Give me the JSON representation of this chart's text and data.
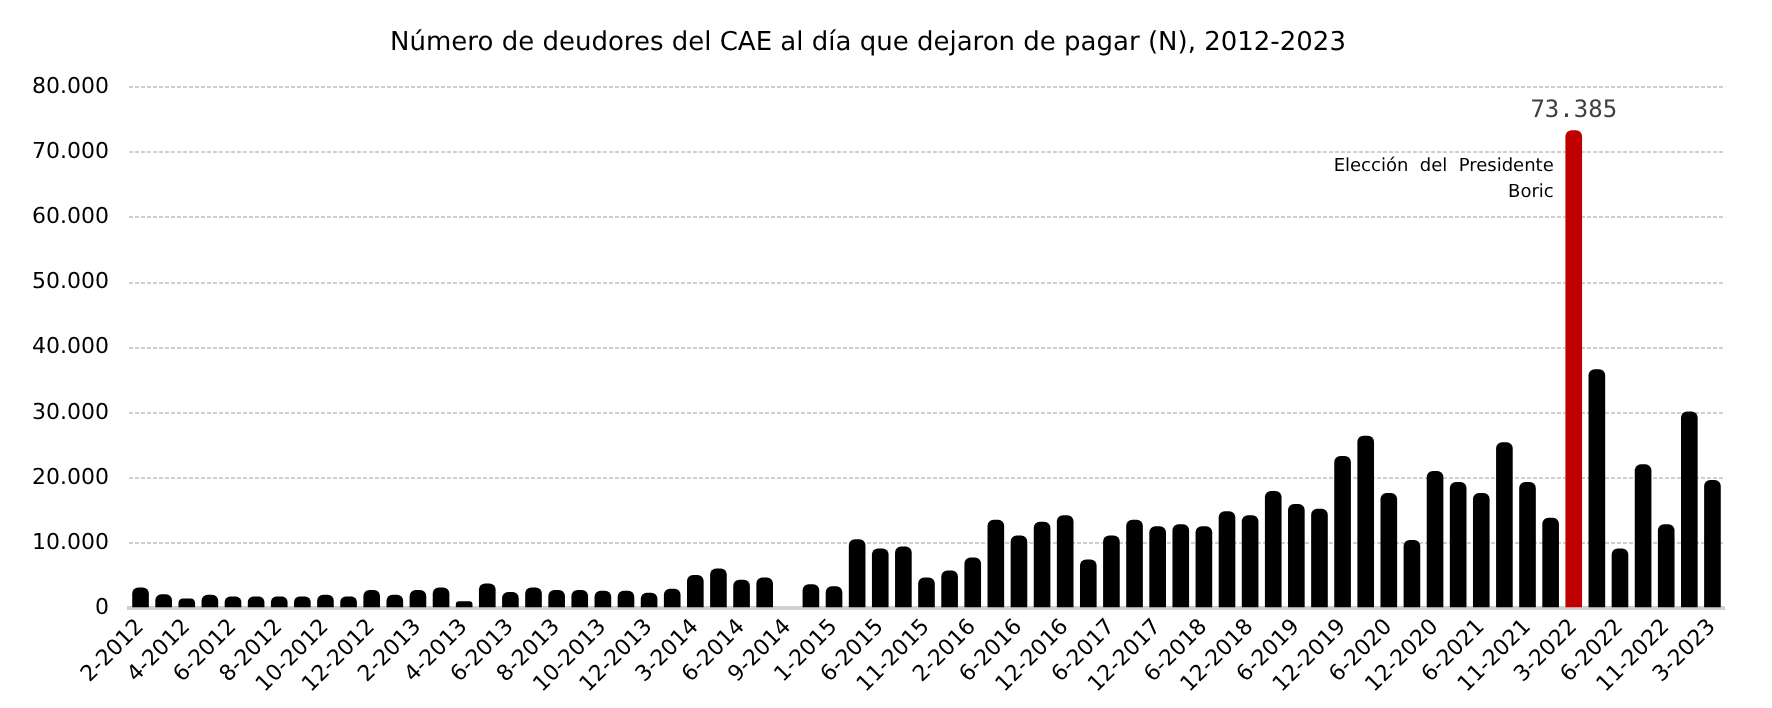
{
  "chart_data": {
    "type": "bar",
    "title": "Número de deudores del CAE al día que dejaron de pagar (N), 2012-2023",
    "categories": [
      "2-2012",
      null,
      "4-2012",
      null,
      "6-2012",
      null,
      "8-2012",
      null,
      "10-2012",
      null,
      "12-2012",
      null,
      "2-2013",
      null,
      "4-2013",
      null,
      "6-2013",
      null,
      "8-2013",
      null,
      "10-2013",
      null,
      "12-2013",
      null,
      "3-2014",
      null,
      "6-2014",
      null,
      "9-2014",
      null,
      "1-2015",
      null,
      "6-2015",
      null,
      "11-2015",
      null,
      "2-2016",
      null,
      "6-2016",
      null,
      "12-2016",
      null,
      "6-2017",
      null,
      "12-2017",
      null,
      "6-2018",
      null,
      "12-2018",
      null,
      "6-2019",
      null,
      "12-2019",
      null,
      "6-2020",
      null,
      "12-2020",
      null,
      "6-2021",
      null,
      "11-2021",
      null,
      "3-2022",
      null,
      "6-2022",
      null,
      "11-2022",
      null,
      "3-2023"
    ],
    "values": [
      3200,
      2150,
      1500,
      2100,
      1800,
      1800,
      1800,
      1800,
      2100,
      1800,
      2800,
      2100,
      2800,
      3200,
      1100,
      3800,
      2500,
      3200,
      2800,
      2800,
      2700,
      2700,
      2400,
      3000,
      5100,
      6100,
      4400,
      4750,
      null,
      3700,
      3400,
      10600,
      9200,
      9500,
      4750,
      5800,
      7800,
      13600,
      11200,
      13300,
      14300,
      7500,
      11200,
      13600,
      12600,
      12900,
      12600,
      14900,
      14300,
      18000,
      16000,
      15300,
      23400,
      26500,
      17700,
      10500,
      21100,
      19400,
      17700,
      25500,
      19400,
      13900,
      73385,
      36700,
      9200,
      22100,
      12900,
      30200,
      19700
    ],
    "colors": [
      "#000000",
      "#000000",
      "#000000",
      "#000000",
      "#000000",
      "#000000",
      "#000000",
      "#000000",
      "#000000",
      "#000000",
      "#000000",
      "#000000",
      "#000000",
      "#000000",
      "#000000",
      "#000000",
      "#000000",
      "#000000",
      "#000000",
      "#000000",
      "#000000",
      "#000000",
      "#000000",
      "#000000",
      "#000000",
      "#000000",
      "#000000",
      "#000000",
      "#000000",
      "#000000",
      "#000000",
      "#000000",
      "#000000",
      "#000000",
      "#000000",
      "#000000",
      "#000000",
      "#000000",
      "#000000",
      "#000000",
      "#000000",
      "#000000",
      "#000000",
      "#000000",
      "#000000",
      "#000000",
      "#000000",
      "#000000",
      "#000000",
      "#000000",
      "#000000",
      "#000000",
      "#000000",
      "#000000",
      "#000000",
      "#000000",
      "#000000",
      "#000000",
      "#000000",
      "#000000",
      "#000000",
      "#000000",
      "#c00000",
      "#000000",
      "#000000",
      "#000000",
      "#000000",
      "#000000",
      "#000000"
    ],
    "value_labels": [
      null,
      null,
      null,
      null,
      null,
      null,
      null,
      null,
      null,
      null,
      null,
      null,
      null,
      null,
      null,
      null,
      null,
      null,
      null,
      null,
      null,
      null,
      null,
      null,
      null,
      null,
      null,
      null,
      null,
      null,
      null,
      null,
      null,
      null,
      null,
      null,
      null,
      null,
      null,
      null,
      null,
      null,
      null,
      null,
      null,
      null,
      null,
      null,
      null,
      null,
      null,
      null,
      null,
      null,
      null,
      null,
      null,
      null,
      null,
      null,
      null,
      null,
      "73.385",
      null,
      null,
      null,
      null,
      null,
      null
    ],
    "ylim": [
      0,
      80000
    ],
    "yticks": [
      0,
      {
        "value": 10000,
        "label": "10.000"
      },
      {
        "value": 20000,
        "label": "20.000"
      },
      {
        "value": 30000,
        "label": "30.000"
      },
      {
        "value": 40000,
        "label": "40.000"
      },
      {
        "value": 50000,
        "label": "50.000"
      },
      {
        "value": 60000,
        "label": "60.000"
      },
      {
        "value": 70000,
        "label": "70.000"
      },
      {
        "value": 80000,
        "label": "80.000"
      }
    ],
    "annotations": [
      {
        "text": "Elección del Presidente Boric",
        "x": "3-2022",
        "y": 66000
      }
    ],
    "grid": "y",
    "legend": false
  }
}
